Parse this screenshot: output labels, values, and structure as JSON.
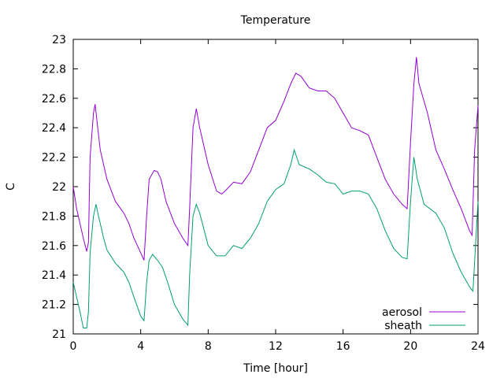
{
  "chart_data": {
    "type": "line",
    "title": "Temperature",
    "xlabel": "Time [hour]",
    "ylabel": "C",
    "xlim": [
      0,
      24
    ],
    "ylim": [
      21,
      23
    ],
    "grid": false,
    "legend_position": "bottom-right",
    "x_ticks": [
      "0",
      "4",
      "8",
      "12",
      "16",
      "20",
      "24"
    ],
    "y_ticks": [
      "21",
      "21.2",
      "21.4",
      "21.6",
      "21.8",
      "22",
      "22.2",
      "22.4",
      "22.6",
      "22.8",
      "23"
    ],
    "series": [
      {
        "name": "aerosol",
        "color": "#9400d3",
        "points": [
          [
            0.0,
            22.0
          ],
          [
            0.2,
            21.85
          ],
          [
            0.4,
            21.75
          ],
          [
            0.6,
            21.65
          ],
          [
            0.8,
            21.56
          ],
          [
            0.9,
            21.62
          ],
          [
            1.0,
            22.2
          ],
          [
            1.2,
            22.5
          ],
          [
            1.3,
            22.56
          ],
          [
            1.45,
            22.4
          ],
          [
            1.6,
            22.25
          ],
          [
            2.0,
            22.05
          ],
          [
            2.5,
            21.9
          ],
          [
            3.0,
            21.82
          ],
          [
            3.3,
            21.75
          ],
          [
            3.6,
            21.65
          ],
          [
            4.0,
            21.55
          ],
          [
            4.2,
            21.5
          ],
          [
            4.35,
            21.8
          ],
          [
            4.5,
            22.05
          ],
          [
            4.8,
            22.11
          ],
          [
            5.0,
            22.1
          ],
          [
            5.2,
            22.05
          ],
          [
            5.5,
            21.9
          ],
          [
            6.0,
            21.75
          ],
          [
            6.5,
            21.65
          ],
          [
            6.8,
            21.6
          ],
          [
            6.9,
            21.85
          ],
          [
            7.1,
            22.4
          ],
          [
            7.3,
            22.53
          ],
          [
            7.5,
            22.4
          ],
          [
            8.0,
            22.15
          ],
          [
            8.5,
            21.97
          ],
          [
            8.8,
            21.95
          ],
          [
            9.0,
            21.97
          ],
          [
            9.5,
            22.03
          ],
          [
            10.0,
            22.02
          ],
          [
            10.5,
            22.1
          ],
          [
            11.0,
            22.25
          ],
          [
            11.5,
            22.4
          ],
          [
            12.0,
            22.45
          ],
          [
            12.5,
            22.58
          ],
          [
            12.9,
            22.7
          ],
          [
            13.2,
            22.77
          ],
          [
            13.5,
            22.75
          ],
          [
            14.0,
            22.67
          ],
          [
            14.5,
            22.65
          ],
          [
            15.0,
            22.65
          ],
          [
            15.5,
            22.6
          ],
          [
            16.0,
            22.5
          ],
          [
            16.5,
            22.4
          ],
          [
            17.0,
            22.38
          ],
          [
            17.5,
            22.35
          ],
          [
            18.0,
            22.2
          ],
          [
            18.5,
            22.05
          ],
          [
            19.0,
            21.95
          ],
          [
            19.5,
            21.88
          ],
          [
            19.8,
            21.85
          ],
          [
            20.0,
            22.3
          ],
          [
            20.2,
            22.7
          ],
          [
            20.35,
            22.88
          ],
          [
            20.5,
            22.7
          ],
          [
            21.0,
            22.5
          ],
          [
            21.5,
            22.25
          ],
          [
            22.0,
            22.12
          ],
          [
            22.5,
            21.98
          ],
          [
            23.0,
            21.85
          ],
          [
            23.5,
            21.7
          ],
          [
            23.65,
            21.67
          ],
          [
            23.8,
            22.25
          ],
          [
            24.0,
            22.55
          ]
        ]
      },
      {
        "name": "sheath",
        "color": "#009e73",
        "points": [
          [
            0.0,
            21.35
          ],
          [
            0.2,
            21.25
          ],
          [
            0.4,
            21.15
          ],
          [
            0.6,
            21.04
          ],
          [
            0.8,
            21.04
          ],
          [
            0.9,
            21.15
          ],
          [
            1.0,
            21.55
          ],
          [
            1.2,
            21.8
          ],
          [
            1.35,
            21.88
          ],
          [
            1.5,
            21.8
          ],
          [
            1.8,
            21.65
          ],
          [
            2.0,
            21.57
          ],
          [
            2.5,
            21.48
          ],
          [
            3.0,
            21.42
          ],
          [
            3.3,
            21.35
          ],
          [
            3.6,
            21.25
          ],
          [
            4.0,
            21.12
          ],
          [
            4.2,
            21.09
          ],
          [
            4.35,
            21.35
          ],
          [
            4.5,
            21.5
          ],
          [
            4.7,
            21.54
          ],
          [
            5.0,
            21.5
          ],
          [
            5.3,
            21.45
          ],
          [
            5.6,
            21.35
          ],
          [
            6.0,
            21.2
          ],
          [
            6.5,
            21.1
          ],
          [
            6.8,
            21.06
          ],
          [
            6.9,
            21.4
          ],
          [
            7.1,
            21.8
          ],
          [
            7.3,
            21.88
          ],
          [
            7.5,
            21.82
          ],
          [
            8.0,
            21.6
          ],
          [
            8.5,
            21.53
          ],
          [
            9.0,
            21.53
          ],
          [
            9.5,
            21.6
          ],
          [
            10.0,
            21.58
          ],
          [
            10.5,
            21.65
          ],
          [
            11.0,
            21.75
          ],
          [
            11.5,
            21.9
          ],
          [
            12.0,
            21.98
          ],
          [
            12.5,
            22.02
          ],
          [
            12.9,
            22.15
          ],
          [
            13.1,
            22.25
          ],
          [
            13.4,
            22.15
          ],
          [
            14.0,
            22.12
          ],
          [
            14.5,
            22.08
          ],
          [
            15.0,
            22.03
          ],
          [
            15.5,
            22.02
          ],
          [
            16.0,
            21.95
          ],
          [
            16.5,
            21.97
          ],
          [
            17.0,
            21.97
          ],
          [
            17.5,
            21.95
          ],
          [
            18.0,
            21.85
          ],
          [
            18.5,
            21.7
          ],
          [
            19.0,
            21.58
          ],
          [
            19.5,
            21.52
          ],
          [
            19.8,
            21.51
          ],
          [
            20.0,
            21.9
          ],
          [
            20.2,
            22.2
          ],
          [
            20.4,
            22.05
          ],
          [
            20.8,
            21.88
          ],
          [
            21.5,
            21.82
          ],
          [
            22.0,
            21.72
          ],
          [
            22.5,
            21.55
          ],
          [
            23.0,
            21.42
          ],
          [
            23.5,
            21.32
          ],
          [
            23.7,
            21.29
          ],
          [
            23.85,
            21.6
          ],
          [
            24.0,
            21.9
          ]
        ]
      }
    ]
  }
}
